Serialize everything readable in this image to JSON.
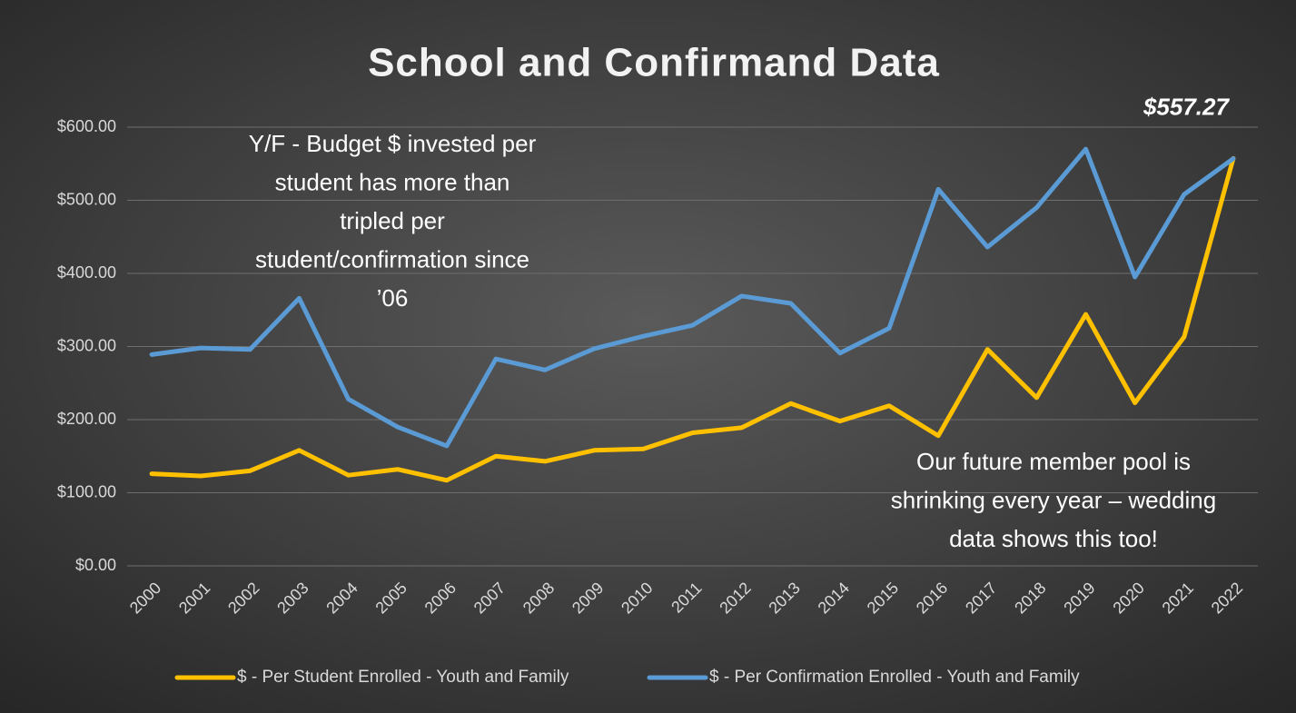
{
  "chart_data": {
    "type": "line",
    "title": "School and Confirmand Data",
    "categories": [
      "2000",
      "2001",
      "2002",
      "2003",
      "2004",
      "2005",
      "2006",
      "2007",
      "2008",
      "2009",
      "2010",
      "2011",
      "2012",
      "2013",
      "2014",
      "2015",
      "2016",
      "2017",
      "2018",
      "2019",
      "2020",
      "2021",
      "2022"
    ],
    "series": [
      {
        "name": "$ - Per Student Enrolled - Youth and Family",
        "color": "#ffc000",
        "values": [
          126,
          123,
          130,
          158,
          124,
          132,
          117,
          150,
          143,
          158,
          160,
          182,
          189,
          222,
          198,
          219,
          178,
          296,
          230,
          344,
          223,
          313,
          557.27
        ],
        "value_labels": [
          null,
          null,
          null,
          null,
          null,
          null,
          null,
          null,
          null,
          null,
          null,
          null,
          null,
          null,
          null,
          null,
          null,
          null,
          null,
          null,
          null,
          null,
          "$557.27"
        ]
      },
      {
        "name": "$ - Per Confirmation Enrolled - Youth and Family",
        "color": "#5b9bd5",
        "values": [
          289,
          298,
          296,
          366,
          228,
          190,
          164,
          283,
          268,
          297,
          314,
          329,
          369,
          359,
          291,
          325,
          515,
          436,
          490,
          570,
          395,
          508,
          557
        ]
      }
    ],
    "ylim": [
      0,
      600
    ],
    "yticks": [
      {
        "value": 0,
        "label": "$0.00"
      },
      {
        "value": 100,
        "label": "$100.00"
      },
      {
        "value": 200,
        "label": "$200.00"
      },
      {
        "value": 300,
        "label": "$300.00"
      },
      {
        "value": 400,
        "label": "$400.00"
      },
      {
        "value": 500,
        "label": "$500.00"
      },
      {
        "value": 600,
        "label": "$600.00"
      }
    ],
    "grid": true,
    "legend": "bottom",
    "annotations": [
      [
        "Y/F - Budget $ invested per",
        "student has more than",
        "tripled per",
        "student/confirmation since",
        "’06"
      ],
      [
        "Our future member pool is",
        "shrinking every year – wedding",
        "data shows this too!"
      ]
    ]
  }
}
